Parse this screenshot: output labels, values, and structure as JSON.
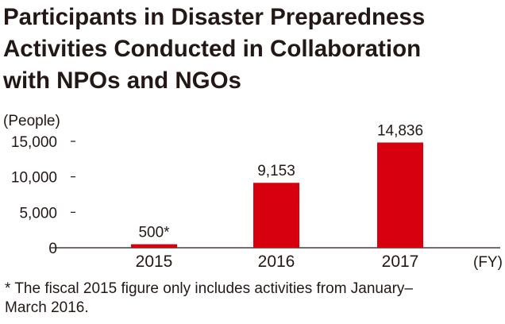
{
  "chart_data": {
    "type": "bar",
    "title_lines": [
      "Participants in Disaster Preparedness",
      "Activities Conducted in Collaboration",
      "with NPOs and NGOs"
    ],
    "ylabel": "(People)",
    "xlabel": "(FY)",
    "categories": [
      "2015",
      "2016",
      "2017"
    ],
    "values": [
      500,
      9153,
      14836
    ],
    "data_labels": [
      "500*",
      "9,153",
      "14,836"
    ],
    "ylim": [
      0,
      15000
    ],
    "yticks": [
      {
        "value": 0,
        "label": "0"
      },
      {
        "value": 5000,
        "label": "5,000"
      },
      {
        "value": 10000,
        "label": "10,000"
      },
      {
        "value": 15000,
        "label": "15,000"
      }
    ],
    "bar_color": "#d7000f",
    "grid": false,
    "footnote_lines": [
      "* The fiscal 2015 figure only includes activities from January–",
      "March 2016."
    ]
  }
}
